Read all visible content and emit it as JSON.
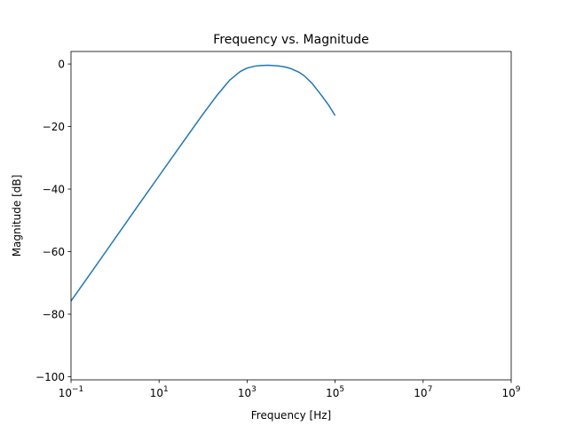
{
  "chart_data": {
    "type": "line",
    "title": "Frequency vs. Magnitude",
    "xlabel": "Frequency [Hz]",
    "ylabel": "Magnitude [dB]",
    "xscale": "log",
    "xlim": [
      0.1,
      1000000000
    ],
    "ylim": [
      -101,
      4
    ],
    "xticks": [
      {
        "value": 0.1,
        "base": "10",
        "exp": "−1"
      },
      {
        "value": 10,
        "base": "10",
        "exp": "1"
      },
      {
        "value": 1000,
        "base": "10",
        "exp": "3"
      },
      {
        "value": 100000,
        "base": "10",
        "exp": "5"
      },
      {
        "value": 10000000,
        "base": "10",
        "exp": "7"
      },
      {
        "value": 1000000000,
        "base": "10",
        "exp": "9"
      }
    ],
    "yticks": [
      {
        "value": 0,
        "label": "0"
      },
      {
        "value": -20,
        "label": "−20"
      },
      {
        "value": -40,
        "label": "−40"
      },
      {
        "value": -60,
        "label": "−60"
      },
      {
        "value": -80,
        "label": "−80"
      },
      {
        "value": -100,
        "label": "−100"
      }
    ],
    "grid": false,
    "line_color": "#1f77b4",
    "series": [
      {
        "x": [
          0.1,
          0.3,
          1,
          3,
          10,
          30,
          100,
          200,
          400,
          700,
          1000,
          1500,
          2000,
          3000,
          5000,
          7000,
          10000,
          15000,
          20000,
          30000,
          50000,
          70000,
          100000
        ],
        "values": [
          -75.8,
          -66.3,
          -55.8,
          -46.2,
          -35.8,
          -26.3,
          -16.0,
          -10.3,
          -5.2,
          -2.4,
          -1.3,
          -0.7,
          -0.5,
          -0.4,
          -0.6,
          -0.9,
          -1.5,
          -2.6,
          -3.8,
          -6.2,
          -10.2,
          -13.0,
          -16.5
        ]
      }
    ]
  }
}
